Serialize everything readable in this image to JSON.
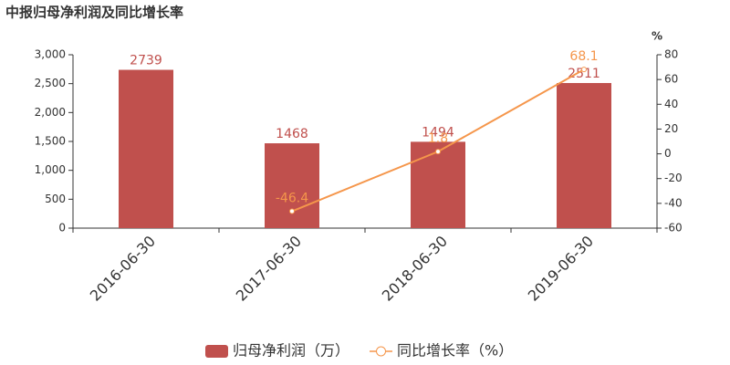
{
  "chart_data": {
    "type": "bar-line",
    "title": "中报归母净利润及同比增长率",
    "categories": [
      "2016-06-30",
      "2017-06-30",
      "2018-06-30",
      "2019-06-30"
    ],
    "series": [
      {
        "name": "归母净利润（万）",
        "type": "bar",
        "color": "#c0504d",
        "values": [
          2739,
          1468,
          1494,
          2511
        ]
      },
      {
        "name": "同比增长率（%）",
        "type": "line",
        "axis": "y2",
        "color": "#f5964b",
        "values": [
          null,
          -46.4,
          1.8,
          68.1
        ]
      }
    ],
    "ylim": [
      0,
      3000
    ],
    "yticks": [
      0,
      500,
      {
        "value": 1000,
        "label": "1,000"
      },
      {
        "value": 1500,
        "label": "1,500"
      },
      {
        "value": 2000,
        "label": "2,000"
      },
      {
        "value": 2500,
        "label": "2,500"
      },
      {
        "value": 3000,
        "label": "3,000"
      }
    ],
    "y2label": "%",
    "y2lim": [
      -60,
      80
    ],
    "y2ticks": [
      -60,
      -40,
      -20,
      0,
      20,
      40,
      60,
      80
    ],
    "grid": false,
    "legend": "bottom"
  }
}
